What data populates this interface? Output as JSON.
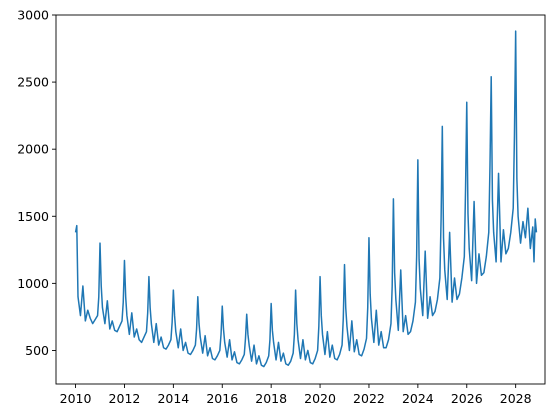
{
  "chart_data": {
    "type": "line",
    "title": "",
    "xlabel": "",
    "ylabel": "",
    "xlim": [
      2009.2,
      2029.2
    ],
    "ylim": [
      250,
      3000
    ],
    "xticks": [
      2010,
      2012,
      2014,
      2016,
      2018,
      2020,
      2022,
      2024,
      2026,
      2028
    ],
    "yticks": [
      500,
      1000,
      1500,
      2000,
      2500,
      3000
    ],
    "grid": false,
    "legend": "none",
    "color": "#1f77b4",
    "series": [
      {
        "x": [
          2010.0,
          2010.05,
          2010.1,
          2010.2,
          2010.3,
          2010.4,
          2010.5,
          2010.6,
          2010.7,
          2010.8,
          2010.9,
          2010.95,
          2011.0,
          2011.05,
          2011.1,
          2011.2,
          2011.3,
          2011.4,
          2011.5,
          2011.6,
          2011.7,
          2011.8,
          2011.9,
          2011.95,
          2012.0,
          2012.05,
          2012.1,
          2012.2,
          2012.3,
          2012.4,
          2012.5,
          2012.6,
          2012.7,
          2012.8,
          2012.9,
          2012.95,
          2013.0,
          2013.05,
          2013.1,
          2013.2,
          2013.3,
          2013.4,
          2013.5,
          2013.6,
          2013.7,
          2013.8,
          2013.9,
          2013.95,
          2014.0,
          2014.05,
          2014.1,
          2014.2,
          2014.3,
          2014.4,
          2014.5,
          2014.6,
          2014.7,
          2014.8,
          2014.9,
          2014.95,
          2015.0,
          2015.05,
          2015.1,
          2015.2,
          2015.3,
          2015.4,
          2015.5,
          2015.6,
          2015.7,
          2015.8,
          2015.9,
          2015.95,
          2016.0,
          2016.05,
          2016.1,
          2016.2,
          2016.3,
          2016.4,
          2016.5,
          2016.6,
          2016.7,
          2016.8,
          2016.9,
          2016.95,
          2017.0,
          2017.05,
          2017.1,
          2017.2,
          2017.3,
          2017.4,
          2017.5,
          2017.6,
          2017.7,
          2017.8,
          2017.9,
          2017.95,
          2018.0,
          2018.05,
          2018.1,
          2018.2,
          2018.3,
          2018.4,
          2018.5,
          2018.6,
          2018.7,
          2018.8,
          2018.9,
          2018.95,
          2019.0,
          2019.05,
          2019.1,
          2019.2,
          2019.3,
          2019.4,
          2019.5,
          2019.6,
          2019.7,
          2019.8,
          2019.9,
          2019.95,
          2020.0,
          2020.05,
          2020.1,
          2020.2,
          2020.3,
          2020.4,
          2020.5,
          2020.6,
          2020.7,
          2020.8,
          2020.9,
          2020.95,
          2021.0,
          2021.05,
          2021.1,
          2021.2,
          2021.3,
          2021.4,
          2021.5,
          2021.6,
          2021.7,
          2021.8,
          2021.9,
          2021.95,
          2022.0,
          2022.05,
          2022.1,
          2022.2,
          2022.3,
          2022.4,
          2022.5,
          2022.6,
          2022.7,
          2022.8,
          2022.9,
          2022.95,
          2023.0,
          2023.05,
          2023.1,
          2023.2,
          2023.3,
          2023.4,
          2023.5,
          2023.6,
          2023.7,
          2023.8,
          2023.9,
          2023.95,
          2024.0,
          2024.05,
          2024.1,
          2024.2,
          2024.3,
          2024.4,
          2024.5,
          2024.6,
          2024.7,
          2024.8,
          2024.9,
          2024.95,
          2025.0,
          2025.05,
          2025.1,
          2025.2,
          2025.3,
          2025.4,
          2025.5,
          2025.6,
          2025.7,
          2025.8,
          2025.9,
          2025.95,
          2026.0,
          2026.05,
          2026.1,
          2026.2,
          2026.3,
          2026.4,
          2026.5,
          2026.6,
          2026.7,
          2026.8,
          2026.9,
          2026.95,
          2027.0,
          2027.05,
          2027.1,
          2027.2,
          2027.3,
          2027.4,
          2027.5,
          2027.6,
          2027.7,
          2027.8,
          2027.9,
          2027.95,
          2028.0,
          2028.05,
          2028.1,
          2028.2,
          2028.3,
          2028.4,
          2028.5,
          2028.6,
          2028.7,
          2028.75,
          2028.8,
          2028.85
        ],
        "y": [
          1380,
          1430,
          900,
          760,
          980,
          720,
          800,
          740,
          700,
          730,
          760,
          900,
          1300,
          980,
          820,
          700,
          870,
          660,
          720,
          650,
          640,
          680,
          720,
          860,
          1170,
          900,
          760,
          620,
          780,
          600,
          660,
          580,
          560,
          600,
          640,
          780,
          1050,
          820,
          700,
          560,
          700,
          540,
          600,
          520,
          510,
          540,
          580,
          710,
          950,
          760,
          640,
          520,
          660,
          500,
          560,
          480,
          470,
          500,
          540,
          660,
          900,
          700,
          600,
          480,
          610,
          460,
          520,
          440,
          430,
          460,
          500,
          620,
          830,
          660,
          560,
          450,
          580,
          430,
          490,
          410,
          400,
          430,
          470,
          590,
          770,
          620,
          540,
          420,
          540,
          400,
          460,
          390,
          380,
          410,
          460,
          580,
          850,
          650,
          560,
          430,
          560,
          420,
          480,
          400,
          390,
          420,
          480,
          620,
          950,
          700,
          580,
          440,
          580,
          430,
          500,
          410,
          400,
          440,
          500,
          680,
          1050,
          760,
          620,
          470,
          640,
          450,
          540,
          440,
          430,
          470,
          540,
          740,
          1140,
          820,
          680,
          500,
          720,
          490,
          580,
          470,
          460,
          510,
          590,
          820,
          1340,
          920,
          740,
          560,
          800,
          540,
          640,
          520,
          520,
          580,
          700,
          980,
          1630,
          1080,
          880,
          650,
          1100,
          640,
          760,
          620,
          640,
          720,
          860,
          1200,
          1920,
          1180,
          960,
          760,
          1240,
          740,
          900,
          760,
          790,
          880,
          1040,
          1480,
          2170,
          1340,
          1100,
          880,
          1380,
          860,
          1040,
          880,
          920,
          1040,
          1200,
          1700,
          2350,
          1520,
          1260,
          1020,
          1610,
          1000,
          1220,
          1060,
          1080,
          1200,
          1380,
          1880,
          2540,
          1620,
          1380,
          1160,
          1820,
          1160,
          1400,
          1220,
          1260,
          1380,
          1560,
          2100,
          2880,
          1780,
          1500,
          1300,
          1460,
          1340,
          1560,
          1260,
          1420,
          1160,
          1480,
          1380
        ]
      }
    ]
  }
}
